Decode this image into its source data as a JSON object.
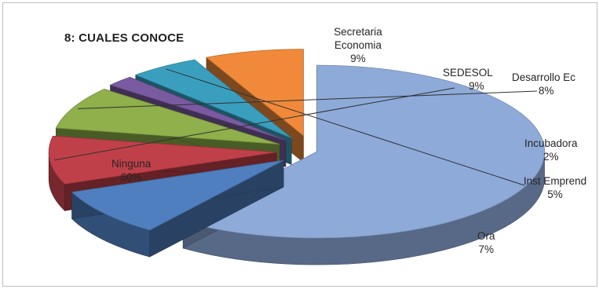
{
  "chart_data": {
    "type": "pie",
    "title": "8: CUALES CONOCE",
    "three_d": true,
    "exploded": true,
    "slices": [
      {
        "name": "Ninguna",
        "value": 60,
        "label": "60%",
        "color": "#8eaad9"
      },
      {
        "name": "Secretaria Economia",
        "value": 9,
        "label": "9%",
        "color": "#4f7fbf"
      },
      {
        "name": "SEDESOL",
        "value": 9,
        "label": "9%",
        "color": "#c0404a"
      },
      {
        "name": "Desarrollo Ec",
        "value": 8,
        "label": "8%",
        "color": "#8fb04a"
      },
      {
        "name": "Incubadora",
        "value": 2,
        "label": "2%",
        "color": "#7a5aa0"
      },
      {
        "name": "Inst Emprend",
        "value": 5,
        "label": "5%",
        "color": "#3a9fbf"
      },
      {
        "name": "Ora",
        "value": 7,
        "label": "7%",
        "color": "#f08a3a"
      }
    ]
  }
}
